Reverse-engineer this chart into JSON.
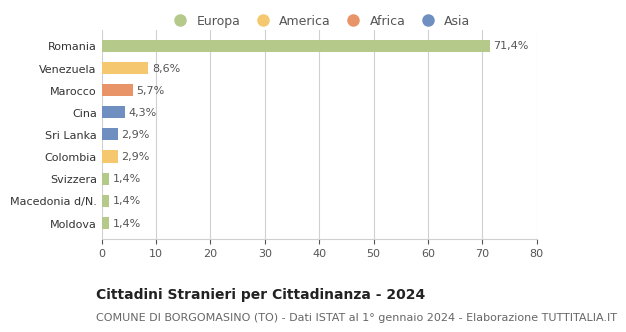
{
  "categories": [
    "Romania",
    "Venezuela",
    "Marocco",
    "Cina",
    "Sri Lanka",
    "Colombia",
    "Svizzera",
    "Macedonia d/N.",
    "Moldova"
  ],
  "values": [
    71.4,
    8.6,
    5.7,
    4.3,
    2.9,
    2.9,
    1.4,
    1.4,
    1.4
  ],
  "labels": [
    "71,4%",
    "8,6%",
    "5,7%",
    "4,3%",
    "2,9%",
    "2,9%",
    "1,4%",
    "1,4%",
    "1,4%"
  ],
  "colors": [
    "#b5c98a",
    "#f5c76e",
    "#e89468",
    "#6e8fbf",
    "#6e8fbf",
    "#f5c76e",
    "#b5c98a",
    "#b5c98a",
    "#b5c98a"
  ],
  "legend_labels": [
    "Europa",
    "America",
    "Africa",
    "Asia"
  ],
  "legend_colors": [
    "#b5c98a",
    "#f5c76e",
    "#e89468",
    "#6e8fbf"
  ],
  "title": "Cittadini Stranieri per Cittadinanza - 2024",
  "subtitle": "COMUNE DI BORGOMASINO (TO) - Dati ISTAT al 1° gennaio 2024 - Elaborazione TUTTITALIA.IT",
  "xlim": [
    0,
    80
  ],
  "xticks": [
    0,
    10,
    20,
    30,
    40,
    50,
    60,
    70,
    80
  ],
  "background_color": "#ffffff",
  "grid_color": "#d0d0d0",
  "title_fontsize": 10,
  "subtitle_fontsize": 8,
  "bar_height": 0.55,
  "label_fontsize": 8,
  "ytick_fontsize": 8,
  "xtick_fontsize": 8,
  "legend_fontsize": 9
}
